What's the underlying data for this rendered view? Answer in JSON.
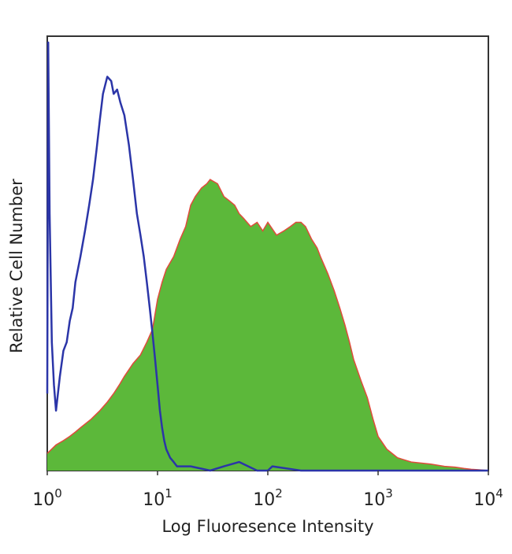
{
  "chart_data": {
    "type": "area",
    "xlabel": "Log Fluoresence Intensity",
    "ylabel": "Relative Cell Number",
    "xscale": "log",
    "xlim": [
      1,
      10000
    ],
    "ylim": [
      0,
      100
    ],
    "grid": false,
    "x_ticks": [
      {
        "base": "10",
        "exp": "0"
      },
      {
        "base": "10",
        "exp": "1"
      },
      {
        "base": "10",
        "exp": "2"
      },
      {
        "base": "10",
        "exp": "3"
      },
      {
        "base": "10",
        "exp": "4"
      }
    ],
    "series": [
      {
        "role": "control histogram",
        "style": "line",
        "color": "#2b35a8",
        "x": [
          1.0,
          1.02,
          1.05,
          1.1,
          1.15,
          1.2,
          1.3,
          1.4,
          1.5,
          1.6,
          1.7,
          1.8,
          2.0,
          2.2,
          2.4,
          2.6,
          2.8,
          3.0,
          3.2,
          3.5,
          3.8,
          4.0,
          4.3,
          4.6,
          5.0,
          5.5,
          6.0,
          6.5,
          7.0,
          7.5,
          8.0,
          8.5,
          9.0,
          9.5,
          10.0,
          10.5,
          11.0,
          11.5,
          12.0,
          13.0,
          14.0,
          15.0,
          20.0,
          30.0,
          40.0,
          55.0,
          80.0,
          100.0,
          110.0,
          200.0,
          1000.0,
          10000.0
        ],
        "y": [
          18,
          100,
          60,
          30,
          20,
          14,
          22,
          28,
          30,
          35,
          38,
          44,
          50,
          56,
          62,
          68,
          75,
          82,
          88,
          92,
          91,
          88,
          89,
          86,
          83,
          76,
          68,
          60,
          55,
          50,
          44,
          38,
          32,
          26,
          20,
          14,
          10,
          7,
          5,
          3,
          2,
          1,
          1,
          0,
          1,
          2,
          0,
          0,
          1,
          0,
          0,
          0
        ]
      },
      {
        "role": "stained histogram",
        "style": "filled",
        "color": "#5cb83a",
        "edge_color": "#e04b3c",
        "x": [
          1.0,
          1.2,
          1.4,
          1.6,
          1.8,
          2.0,
          2.5,
          3.0,
          3.5,
          4.0,
          4.5,
          5.0,
          6.0,
          7.0,
          8.0,
          9.0,
          10.0,
          11.0,
          12.0,
          14.0,
          16.0,
          18.0,
          20.0,
          22.0,
          25.0,
          28.0,
          30.0,
          35.0,
          40.0,
          45.0,
          50.0,
          55.0,
          60.0,
          70.0,
          80.0,
          90.0,
          100.0,
          120.0,
          140.0,
          160.0,
          180.0,
          200.0,
          220.0,
          250.0,
          280.0,
          300.0,
          350.0,
          400.0,
          450.0,
          500.0,
          550.0,
          600.0,
          700.0,
          800.0,
          900.0,
          1000.0,
          1200.0,
          1500.0,
          2000.0,
          3000.0,
          4000.0,
          5000.0,
          6000.0,
          7000.0,
          8000.0,
          10000.0
        ],
        "y": [
          4,
          6,
          7,
          8,
          9,
          10,
          12,
          14,
          16,
          18,
          20,
          22,
          25,
          27,
          30,
          33,
          40,
          44,
          47,
          50,
          54,
          57,
          62,
          64,
          66,
          67,
          68,
          67,
          64,
          63,
          62,
          60,
          59,
          57,
          58,
          56,
          58,
          55,
          56,
          57,
          58,
          58,
          57,
          54,
          52,
          50,
          46,
          42,
          38,
          34,
          30,
          26,
          21,
          17,
          12,
          8,
          5,
          3,
          2,
          1.5,
          1,
          0.8,
          0.5,
          0.3,
          0.2,
          0
        ]
      }
    ]
  }
}
